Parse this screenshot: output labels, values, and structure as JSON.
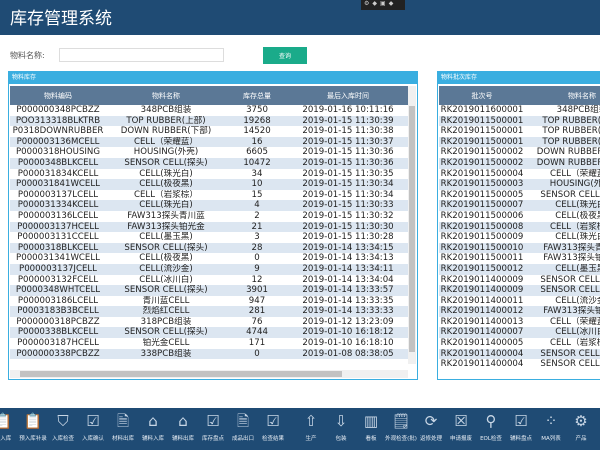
{
  "header": {
    "title": "库存管理系统"
  },
  "search": {
    "label": "物料名称:",
    "value": "",
    "button": "查询"
  },
  "left_panel": {
    "title": "物料库存",
    "columns": [
      "物料编码",
      "物料名称",
      "库存总量",
      "最后入库时间"
    ],
    "rows": [
      [
        "P000000348PCBZZ",
        "348PCB组装",
        "3750",
        "2019-01-16 10:11:16"
      ],
      [
        "POO313318BLKTRB",
        "TOP RUBBER(上部)",
        "19268",
        "2019-01-15 11:30:39"
      ],
      [
        "P0318DOWNRUBBER",
        "DOWN RUBBER(下部)",
        "14520",
        "2019-01-15 11:30:38"
      ],
      [
        "P000003136MCELL",
        "CELL（荣耀蓝）",
        "16",
        "2019-01-15 11:30:37"
      ],
      [
        "P0000318HOUSING",
        "HOUSING(外壳)",
        "6605",
        "2019-01-15 11:30:36"
      ],
      [
        "P0000348BLKCELL",
        "SENSOR CELL(探头)",
        "10472",
        "2019-01-15 11:30:36"
      ],
      [
        "P000031834KCELL",
        "CELL(珠光白)",
        "34",
        "2019-01-15 11:30:35"
      ],
      [
        "P000031841WCELL",
        "CELL(极夜黑)",
        "10",
        "2019-01-15 11:30:34"
      ],
      [
        "P000003137LCELL",
        "CELL（岩浆棕）",
        "15",
        "2019-01-15 11:30:34"
      ],
      [
        "P000031334KCELL",
        "CELL(珠光白)",
        "4",
        "2019-01-15 11:30:33"
      ],
      [
        "P000003136LCELL",
        "FAW313探头青川蓝",
        "2",
        "2019-01-15 11:30:32"
      ],
      [
        "P000003137HCELL",
        "FAW313探头铂光金",
        "21",
        "2019-01-15 11:30:30"
      ],
      [
        "P000003131CCELL",
        "CELL(墨玉黑)",
        "3",
        "2019-01-15 11:30:28"
      ],
      [
        "P0000318BLKCELL",
        "SENSOR CELL(探头)",
        "28",
        "2019-01-14 13:34:15"
      ],
      [
        "P000031341WCELL",
        "CELL(极夜黑)",
        "0",
        "2019-01-14 13:34:13"
      ],
      [
        "P000003137JCELL",
        "CELL(流沙金)",
        "9",
        "2019-01-14 13:34:11"
      ],
      [
        "P000003132FCELL",
        "CELL(冰川白)",
        "12",
        "2019-01-14 13:34:04"
      ],
      [
        "P0000348WHTCELL",
        "SENSOR CELL(探头)",
        "3901",
        "2019-01-14 13:33:57"
      ],
      [
        "P000003186LCELL",
        "青川蓝CELL",
        "947",
        "2019-01-14 13:33:35"
      ],
      [
        "P0003183B3BCELL",
        "烈焰红CELL",
        "281",
        "2019-01-14 13:33:33"
      ],
      [
        "P000000318PCBZZ",
        "318PCB组装",
        "76",
        "2019-01-12 13:23:09"
      ],
      [
        "P0000338BLKCELL",
        "SENSOR CELL(探头)",
        "4744",
        "2019-01-10 16:18:12"
      ],
      [
        "P000003187HCELL",
        "铂光金CELL",
        "171",
        "2019-01-10 16:18:10"
      ],
      [
        "P000000338PCBZZ",
        "338PCB组装",
        "0",
        "2019-01-08 08:38:05"
      ]
    ]
  },
  "right_panel": {
    "title": "物料批次库存",
    "columns": [
      "批次号",
      "物料名称"
    ],
    "rows": [
      [
        "RK2019011600001",
        "348PCB组装"
      ],
      [
        "RK2019011500001",
        "TOP RUBBER(上部)"
      ],
      [
        "RK2019011500001",
        "TOP RUBBER(上部)"
      ],
      [
        "RK2019011500001",
        "TOP RUBBER(上部)"
      ],
      [
        "RK2019011500002",
        "DOWN RUBBER(下部)"
      ],
      [
        "RK2019011500002",
        "DOWN RUBBER(下部)"
      ],
      [
        "RK2019011500004",
        "CELL（荣耀蓝）"
      ],
      [
        "RK2019011500003",
        "HOUSING(外壳)"
      ],
      [
        "RK2019011500005",
        "SENSOR CELL(探头)"
      ],
      [
        "RK2019011500007",
        "CELL(珠光白)"
      ],
      [
        "RK2019011500006",
        "CELL(极夜黑)"
      ],
      [
        "RK2019011500008",
        "CELL（岩浆棕）"
      ],
      [
        "RK2019011500009",
        "CELL(珠光白)"
      ],
      [
        "RK2019011500010",
        "FAW313探头青川蓝"
      ],
      [
        "RK2019011500011",
        "FAW313探头铂光金"
      ],
      [
        "RK2019011500012",
        "CELL(墨玉黑)"
      ],
      [
        "RK2019011400009",
        "SENSOR CELL(探头)"
      ],
      [
        "RK2019011400009",
        "SENSOR CELL(探头)"
      ],
      [
        "RK2019011400011",
        "CELL(流沙金)"
      ],
      [
        "RK2019011400012",
        "FAW313探头铂光金"
      ],
      [
        "RK2019011400013",
        "CELL（荣耀蓝）"
      ],
      [
        "RK2019011400007",
        "CELL(冰川白)"
      ],
      [
        "RK2019011400005",
        "CELL（岩浆棕）"
      ],
      [
        "RK2019011400004",
        "SENSOR CELL(探头)"
      ],
      [
        "RK2019011400004",
        "SENSOR CELL(探头)"
      ]
    ]
  },
  "toolbar": [
    {
      "label": "预入库",
      "icon": "clipboard-icon"
    },
    {
      "label": "预入库补录",
      "icon": "clipboard-icon"
    },
    {
      "label": "入库检查",
      "icon": "shield-icon"
    },
    {
      "label": "入库确认",
      "icon": "clipboard-check-icon"
    },
    {
      "label": "材料出库",
      "icon": "document-icon"
    },
    {
      "label": "辅料入库",
      "icon": "warehouse-icon"
    },
    {
      "label": "辅料出库",
      "icon": "warehouse-icon"
    },
    {
      "label": "库存盘点",
      "icon": "clipboard-check-icon"
    },
    {
      "label": "成品出口",
      "icon": "document-icon"
    },
    {
      "label": "检查结果",
      "icon": "clipboard-check-icon"
    },
    {
      "label": "生产",
      "icon": "upload-icon"
    },
    {
      "label": "包装",
      "icon": "download-icon"
    },
    {
      "label": "看板",
      "icon": "barcode-icon"
    },
    {
      "label": "外观检查(批)",
      "icon": "inspect-icon"
    },
    {
      "label": "返修处理",
      "icon": "refresh-icon"
    },
    {
      "label": "申请报废",
      "icon": "scrap-icon"
    },
    {
      "label": "EOL检查",
      "icon": "microscope-icon"
    },
    {
      "label": "辅料盘点",
      "icon": "clipboard-check-icon"
    },
    {
      "label": "MA列表",
      "icon": "grid-icon"
    },
    {
      "label": "产品",
      "icon": "settings-icon"
    }
  ]
}
